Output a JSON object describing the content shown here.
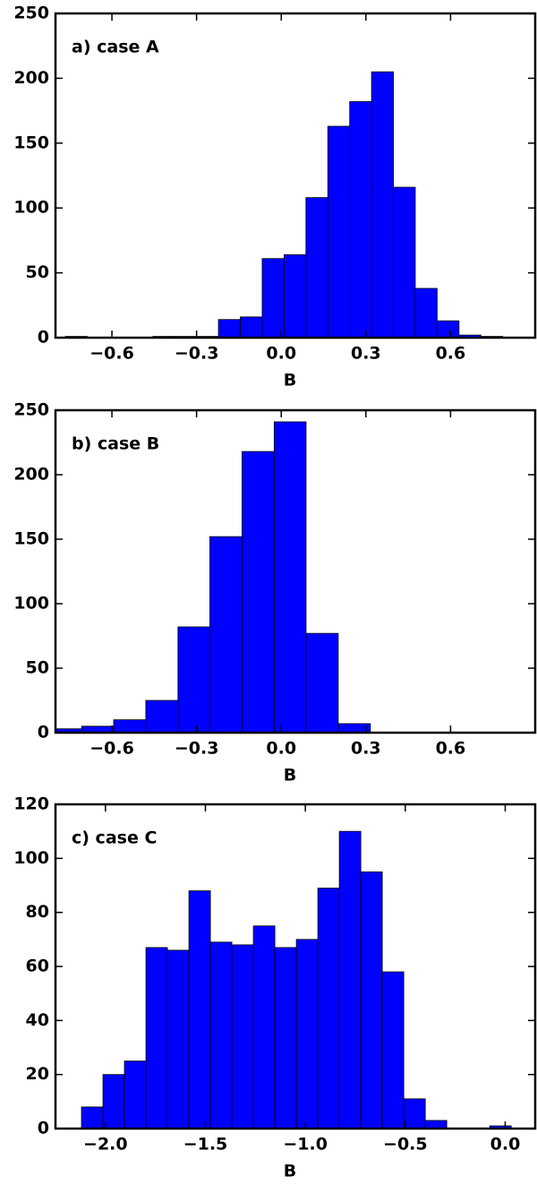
{
  "chart_data": [
    {
      "type": "histogram",
      "annotation": "a) case A",
      "xlabel": "B",
      "color": "#0000ff",
      "bins": [
        -0.765,
        -0.6875,
        -0.61,
        -0.5325,
        -0.455,
        -0.3775,
        -0.3,
        -0.2225,
        -0.145,
        -0.0675,
        0.01,
        0.0875,
        0.165,
        0.2425,
        0.32,
        0.3975,
        0.475,
        0.5525,
        0.63,
        0.7075,
        0.785
      ],
      "values": [
        1,
        0,
        0,
        0,
        1,
        1,
        1,
        14,
        16,
        61,
        64,
        108,
        163,
        182,
        205,
        116,
        38,
        13,
        2,
        1
      ],
      "xlim": [
        -0.8,
        0.9
      ],
      "xticks": [
        {
          "value": -0.6,
          "label": "−0.6"
        },
        {
          "value": -0.3,
          "label": "−0.3"
        },
        {
          "value": 0,
          "label": "0.0"
        },
        0.3,
        0.6
      ],
      "ylim": [
        0,
        250
      ],
      "yticks": [
        0,
        50,
        100,
        150,
        200,
        250
      ]
    },
    {
      "type": "histogram",
      "annotation": "b) case B",
      "xlabel": "B",
      "color": "#0000ff",
      "bins": [
        -0.821,
        -0.707,
        -0.594,
        -0.48,
        -0.366,
        -0.253,
        -0.139,
        -0.025,
        0.088,
        0.202,
        0.316
      ],
      "values": [
        3,
        5,
        10,
        25,
        82,
        152,
        218,
        241,
        77,
        7
      ],
      "xlim": [
        -0.8,
        0.9
      ],
      "xticks": [
        {
          "value": -0.6,
          "label": "−0.6"
        },
        {
          "value": -0.3,
          "label": "−0.3"
        },
        {
          "value": 0,
          "label": "0.0"
        },
        0.3,
        0.6
      ],
      "ylim": [
        0,
        250
      ],
      "yticks": [
        0,
        50,
        100,
        150,
        200,
        250
      ]
    },
    {
      "type": "histogram",
      "annotation": "c) case C",
      "xlabel": "B",
      "color": "#0000ff",
      "bins": [
        -2.12,
        -2.0125,
        -1.905,
        -1.7975,
        -1.69,
        -1.5825,
        -1.475,
        -1.3675,
        -1.26,
        -1.1525,
        -1.045,
        -0.9375,
        -0.83,
        -0.7225,
        -0.615,
        -0.5075,
        -0.4,
        -0.2925,
        -0.185,
        -0.0775,
        0.03
      ],
      "values": [
        8,
        20,
        25,
        67,
        66,
        88,
        69,
        68,
        75,
        67,
        70,
        89,
        110,
        95,
        58,
        11,
        3,
        0,
        0,
        1
      ],
      "xlim": [
        -2.25,
        0.15
      ],
      "xticks": [
        {
          "value": -2,
          "label": "−2.0"
        },
        {
          "value": -1.5,
          "label": "−1.5"
        },
        {
          "value": -1,
          "label": "−1.0"
        },
        {
          "value": -0.5,
          "label": "−0.5"
        },
        {
          "value": 0,
          "label": "0.0"
        }
      ],
      "ylim": [
        0,
        120
      ],
      "yticks": [
        0,
        20,
        40,
        60,
        80,
        100,
        120
      ]
    }
  ]
}
